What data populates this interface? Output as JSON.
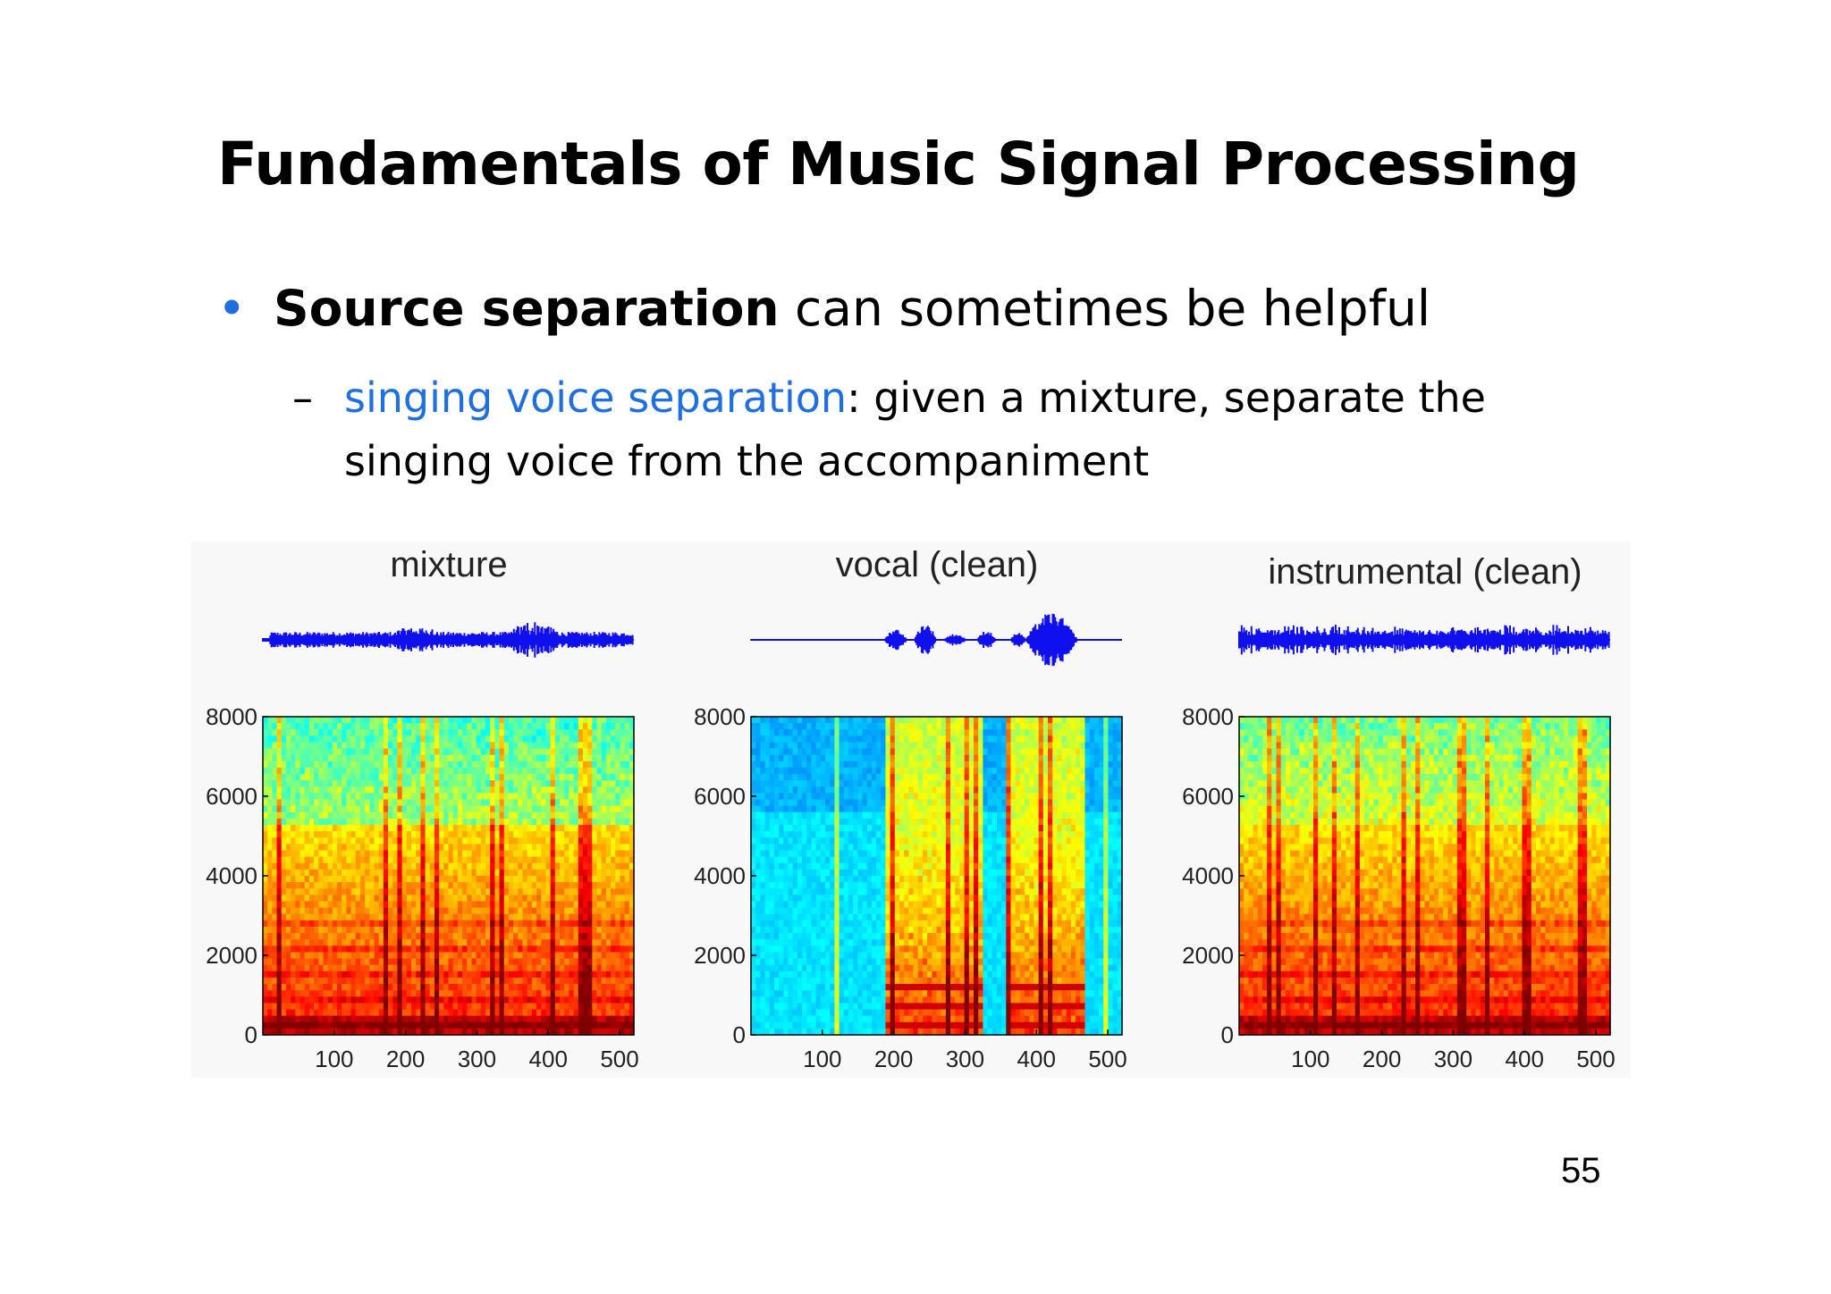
{
  "slide": {
    "title": "Fundamentals of Music Signal Processing",
    "bullet": {
      "symbol": "•",
      "bold": "Source separation",
      "rest": " can sometimes be helpful"
    },
    "sub": {
      "dash": "–",
      "link": "singing voice separation",
      "line1_rest": ": given a mixture, separate the",
      "line2": "singing voice from the accompaniment"
    },
    "page_number": "55"
  },
  "colors": {
    "accent_blue": "#1f6fe0",
    "waveform_blue": "#1010ee"
  },
  "figure": {
    "panels": [
      {
        "title": "mixture",
        "type": "mixture"
      },
      {
        "title": "vocal (clean)",
        "type": "vocal"
      },
      {
        "title": "instrumental (clean)",
        "type": "instrumental"
      }
    ]
  },
  "chart_data": [
    {
      "type": "heatmap",
      "title": "mixture",
      "x_ticks": [
        "100",
        "200",
        "300",
        "400",
        "500"
      ],
      "y_ticks": [
        "0",
        "2000",
        "4000",
        "6000",
        "8000"
      ],
      "xlim": [
        0,
        520
      ],
      "ylim": [
        0,
        8000
      ],
      "colormap": "jet"
    },
    {
      "type": "heatmap",
      "title": "vocal (clean)",
      "x_ticks": [
        "100",
        "200",
        "300",
        "400",
        "500"
      ],
      "y_ticks": [
        "0",
        "2000",
        "4000",
        "6000",
        "8000"
      ],
      "xlim": [
        0,
        520
      ],
      "ylim": [
        0,
        8000
      ],
      "colormap": "jet"
    },
    {
      "type": "heatmap",
      "title": "instrumental (clean)",
      "x_ticks": [
        "100",
        "200",
        "300",
        "400",
        "500"
      ],
      "y_ticks": [
        "0",
        "2000",
        "4000",
        "6000",
        "8000"
      ],
      "xlim": [
        0,
        520
      ],
      "ylim": [
        0,
        8000
      ],
      "colormap": "jet"
    }
  ]
}
